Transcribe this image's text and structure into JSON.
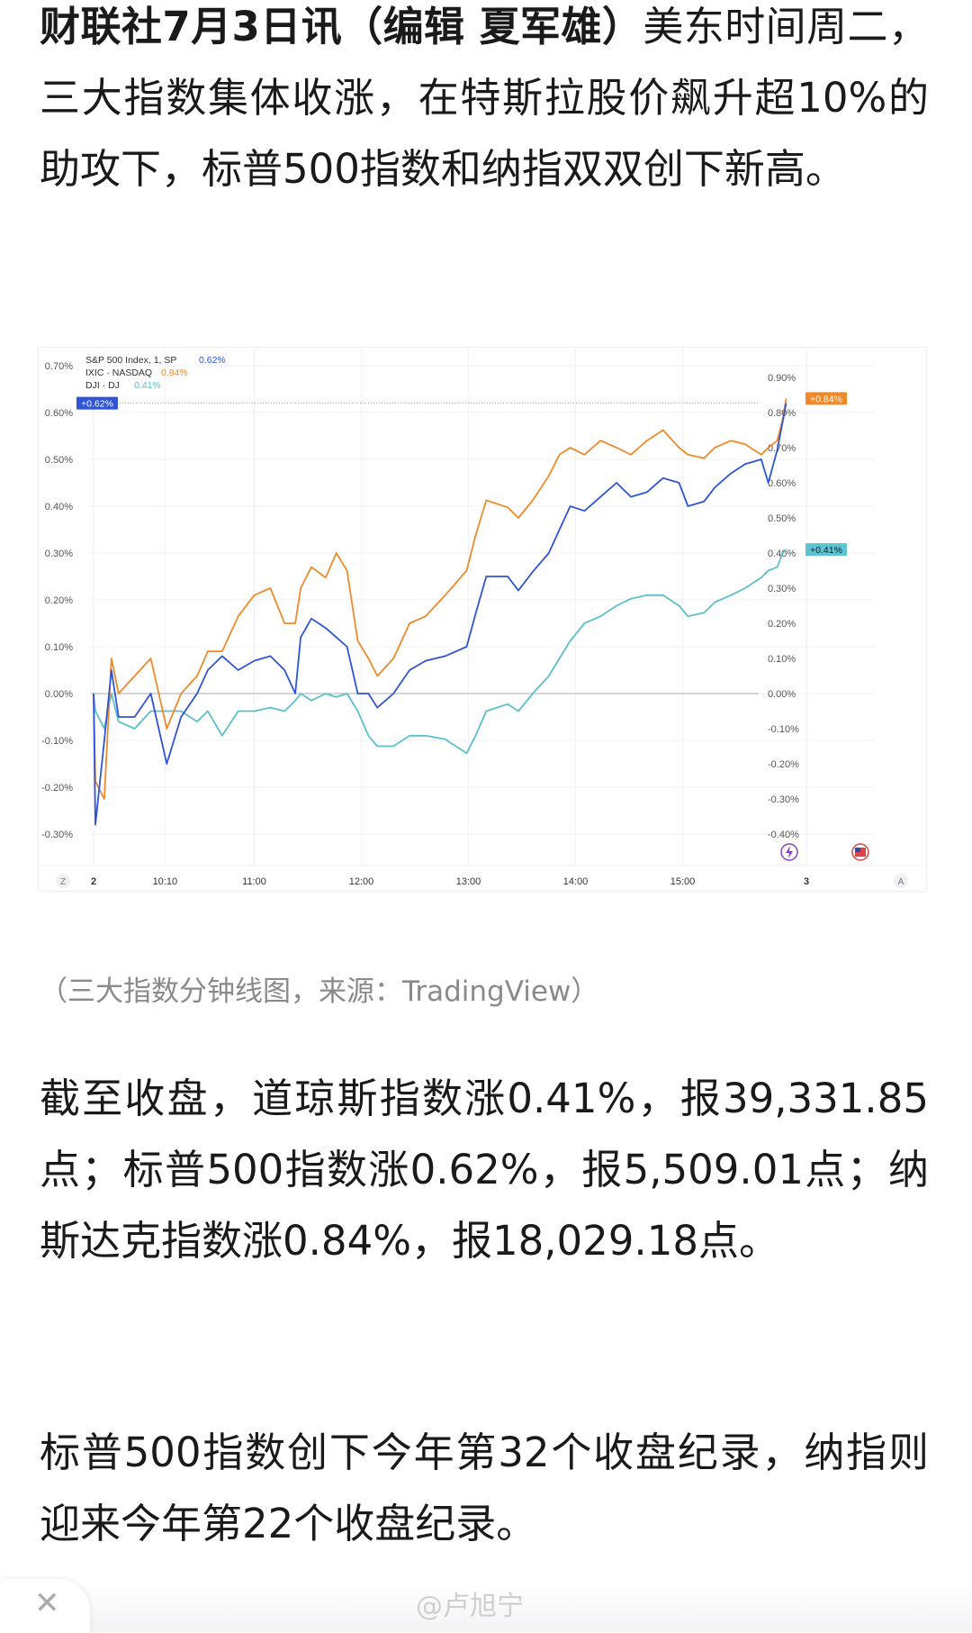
{
  "article": {
    "lead_bold": "财联社7月3日讯（编辑 夏军雄）",
    "lead_rest": "美东时间周二，三大指数集体收涨，在特斯拉股价飙升超10%的助攻下，标普500指数和纳指双双创下新高。",
    "caption": "（三大指数分钟线图，来源：TradingView）",
    "para2": "截至收盘，道琼斯指数涨0.41%，报39,331.85点；标普500指数涨0.62%，报5,509.01点；纳斯达克指数涨0.84%，报18,029.18点。",
    "para3": "标普500指数创下今年第32个收盘纪录，纳指则迎来今年第22个收盘纪录。"
  },
  "bottom": {
    "close_label": "✕",
    "watermark": "@卢旭宁"
  },
  "chart_data": {
    "type": "line",
    "legend": [
      {
        "label": "S&P 500 Index, 1, SP",
        "value": "0.62%"
      },
      {
        "label": "IXIC · NASDAQ",
        "value": "0.84%"
      },
      {
        "label": "DJI · DJ",
        "value": "0.41%"
      }
    ],
    "legend_placement": "top-left",
    "x": [
      "09:30",
      "09:31",
      "09:36",
      "09:40",
      "09:44",
      "09:53",
      "10:02",
      "10:11",
      "10:19",
      "10:28",
      "10:34",
      "10:42",
      "10:51",
      "11:00",
      "11:09",
      "11:17",
      "11:23",
      "11:26",
      "11:32",
      "11:40",
      "11:46",
      "11:52",
      "11:58",
      "12:04",
      "12:09",
      "12:18",
      "12:27",
      "12:36",
      "12:47",
      "12:59",
      "13:04",
      "13:10",
      "13:22",
      "13:28",
      "13:36",
      "13:45",
      "13:51",
      "13:57",
      "14:05",
      "14:14",
      "14:23",
      "14:31",
      "14:40",
      "14:49",
      "14:58",
      "15:03",
      "15:12",
      "15:18",
      "15:27",
      "15:35",
      "15:44",
      "15:48",
      "15:53",
      "15:56",
      "15:58"
    ],
    "series": [
      {
        "name": "S&P 500 Index, 1, SP",
        "axis": "left",
        "color": "#2f55d4",
        "values": [
          0,
          -0.28,
          -0.1,
          0.05,
          -0.05,
          -0.05,
          0,
          -0.15,
          -0.05,
          0,
          0.05,
          0.08,
          0.05,
          0.07,
          0.08,
          0.05,
          0,
          0.12,
          0.16,
          0.14,
          0.12,
          0.1,
          0,
          0,
          -0.03,
          0,
          0.05,
          0.07,
          0.08,
          0.1,
          0.17,
          0.25,
          0.25,
          0.22,
          0.26,
          0.3,
          0.35,
          0.4,
          0.39,
          0.42,
          0.45,
          0.42,
          0.43,
          0.46,
          0.45,
          0.4,
          0.41,
          0.44,
          0.47,
          0.49,
          0.5,
          0.45,
          0.52,
          0.58,
          0.62
        ]
      },
      {
        "name": "IXIC · NASDAQ",
        "axis": "right",
        "color": "#ef8a2a",
        "values": [
          0,
          -0.25,
          -0.3,
          0.1,
          0,
          0.05,
          0.1,
          -0.1,
          0,
          0.05,
          0.12,
          0.12,
          0.22,
          0.28,
          0.3,
          0.2,
          0.2,
          0.3,
          0.36,
          0.33,
          0.4,
          0.35,
          0.15,
          0.1,
          0.05,
          0.1,
          0.2,
          0.22,
          0.28,
          0.35,
          0.45,
          0.55,
          0.53,
          0.5,
          0.55,
          0.62,
          0.68,
          0.7,
          0.68,
          0.72,
          0.7,
          0.68,
          0.72,
          0.75,
          0.7,
          0.68,
          0.67,
          0.7,
          0.72,
          0.71,
          0.68,
          0.7,
          0.72,
          0.78,
          0.84
        ]
      },
      {
        "name": "DJI · DJ",
        "axis": "right",
        "color": "#5cbfc9",
        "values": [
          0,
          -0.05,
          -0.1,
          0,
          -0.08,
          -0.1,
          -0.05,
          -0.05,
          -0.05,
          -0.08,
          -0.05,
          -0.12,
          -0.05,
          -0.05,
          -0.04,
          -0.05,
          -0.02,
          0,
          -0.02,
          0,
          -0.01,
          0,
          -0.05,
          -0.12,
          -0.15,
          -0.15,
          -0.12,
          -0.12,
          -0.13,
          -0.17,
          -0.12,
          -0.05,
          -0.03,
          -0.05,
          0,
          0.05,
          0.1,
          0.15,
          0.2,
          0.22,
          0.25,
          0.27,
          0.28,
          0.28,
          0.25,
          0.22,
          0.23,
          0.26,
          0.28,
          0.3,
          0.33,
          0.35,
          0.36,
          0.4,
          0.41
        ]
      }
    ],
    "left_axis": {
      "ticks": [
        "0.70%",
        "0.60%",
        "0.50%",
        "0.40%",
        "0.30%",
        "0.20%",
        "0.10%",
        "0.00%",
        "-0.10%",
        "-0.20%",
        "-0.30%"
      ],
      "range": [
        -0.33,
        0.74
      ]
    },
    "right_axis": {
      "ticks": [
        "0.90%",
        "0.80%",
        "0.70%",
        "0.60%",
        "0.50%",
        "0.40%",
        "0.30%",
        "0.20%",
        "0.10%",
        "0.00%",
        "-0.10%",
        "-0.20%",
        "-0.30%",
        "-0.40%"
      ],
      "range": [
        -0.44,
        0.98
      ]
    },
    "x_ticks": [
      "2",
      "10:10",
      "11:00",
      "12:00",
      "13:00",
      "14:00",
      "15:00",
      "3"
    ],
    "tags": {
      "left": "+0.62%",
      "right_top": "+0.84%",
      "right_mid": "+0.41%"
    },
    "axis_buttons": {
      "left": "Z",
      "right": "A"
    },
    "grid": true
  }
}
